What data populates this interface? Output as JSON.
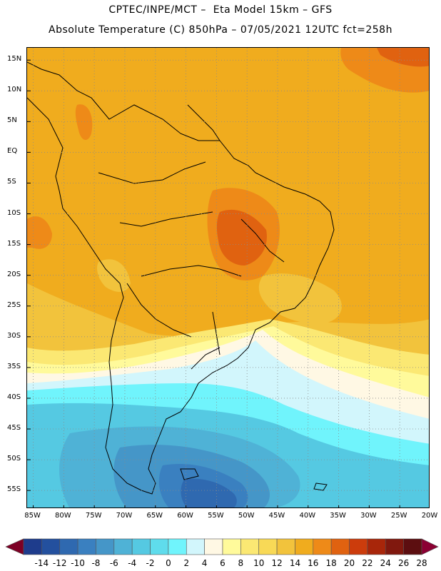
{
  "title": {
    "line1": "CPTEC/INPE/MCT –  Eta Model 15km – GFS",
    "line2": "Absolute Temperature (C) 850hPa – 07/05/2021 12UTC fct=258h"
  },
  "map": {
    "lat_range": [
      -58,
      17
    ],
    "lon_range": [
      -86,
      -20
    ],
    "lat_ticks": [
      {
        "value": 15,
        "label": "15N"
      },
      {
        "value": 10,
        "label": "10N"
      },
      {
        "value": 5,
        "label": "5N"
      },
      {
        "value": 0,
        "label": "EQ"
      },
      {
        "value": -5,
        "label": "5S"
      },
      {
        "value": -10,
        "label": "10S"
      },
      {
        "value": -15,
        "label": "15S"
      },
      {
        "value": -20,
        "label": "20S"
      },
      {
        "value": -25,
        "label": "25S"
      },
      {
        "value": -30,
        "label": "30S"
      },
      {
        "value": -35,
        "label": "35S"
      },
      {
        "value": -40,
        "label": "40S"
      },
      {
        "value": -45,
        "label": "45S"
      },
      {
        "value": -50,
        "label": "50S"
      },
      {
        "value": -55,
        "label": "55S"
      }
    ],
    "lon_ticks": [
      {
        "value": -85,
        "label": "85W"
      },
      {
        "value": -80,
        "label": "80W"
      },
      {
        "value": -75,
        "label": "75W"
      },
      {
        "value": -70,
        "label": "70W"
      },
      {
        "value": -65,
        "label": "65W"
      },
      {
        "value": -60,
        "label": "60W"
      },
      {
        "value": -55,
        "label": "55W"
      },
      {
        "value": -50,
        "label": "50W"
      },
      {
        "value": -45,
        "label": "45W"
      },
      {
        "value": -40,
        "label": "40W"
      },
      {
        "value": -35,
        "label": "35W"
      },
      {
        "value": -30,
        "label": "30W"
      },
      {
        "value": -25,
        "label": "25W"
      },
      {
        "value": -20,
        "label": "20W"
      }
    ],
    "gridlines": true
  },
  "colorbar": {
    "labels": [
      "-14",
      "-12",
      "-10",
      "-8",
      "-6",
      "-4",
      "-2",
      "0",
      "2",
      "4",
      "6",
      "8",
      "10",
      "12",
      "14",
      "16",
      "18",
      "20",
      "22",
      "24",
      "26",
      "28"
    ],
    "colors": [
      "#7d0025",
      "#1e3c8c",
      "#23509e",
      "#2f69b0",
      "#3a80c0",
      "#4596c8",
      "#4fb2d6",
      "#55c9e2",
      "#5fdcec",
      "#70f4fc",
      "#d2f6fc",
      "#fff8e4",
      "#fffa9b",
      "#fbe873",
      "#f8d956",
      "#f2c33c",
      "#f0ac1e",
      "#ee8a18",
      "#e06210",
      "#cc3c0c",
      "#a8260a",
      "#80180e",
      "#5c0e10",
      "#8b0033"
    ]
  }
}
